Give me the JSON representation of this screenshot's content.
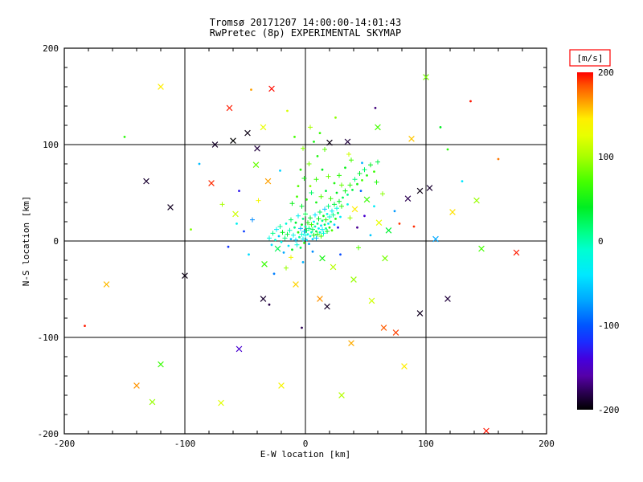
{
  "page": {
    "background": "#ffffff"
  },
  "chart_data": {
    "type": "scatter",
    "title": "Tromsø 20171207 14:00:00-14:01:43",
    "subtitle": "RwPretec (8p) EXPERIMENTAL SKYMAP",
    "xlabel": "E-W location [km]",
    "ylabel": "N-S location [km]",
    "xlim": [
      -200,
      200
    ],
    "ylim": [
      -200,
      200
    ],
    "xticks": [
      -200,
      -100,
      0,
      100,
      200
    ],
    "yticks": [
      -200,
      -100,
      0,
      100,
      200
    ],
    "grid_lines": [
      -100,
      0,
      100
    ],
    "grid_on": true,
    "axis_color": "#000000",
    "colorbar": {
      "label": "[m/s]",
      "min": -200,
      "max": 200,
      "ticks": [
        200,
        100,
        0,
        -100,
        -200
      ],
      "box_color": "#ff0000"
    },
    "colormap": [
      [
        -200,
        "#000000"
      ],
      [
        -180,
        "#2a0050"
      ],
      [
        -160,
        "#5500a8"
      ],
      [
        -140,
        "#4400dd"
      ],
      [
        -120,
        "#1b2bff"
      ],
      [
        -100,
        "#0055ff"
      ],
      [
        -70,
        "#00a8ff"
      ],
      [
        -40,
        "#00e8ff"
      ],
      [
        -10,
        "#00ffd0"
      ],
      [
        10,
        "#00ff88"
      ],
      [
        40,
        "#00ee22"
      ],
      [
        70,
        "#44ff00"
      ],
      [
        100,
        "#a8ff00"
      ],
      [
        125,
        "#e8ff00"
      ],
      [
        145,
        "#ffee00"
      ],
      [
        165,
        "#ffa000"
      ],
      [
        185,
        "#ff5000"
      ],
      [
        200,
        "#ff0000"
      ]
    ],
    "points_format": [
      "x_km",
      "y_km",
      "velocity_mps",
      "marker"
    ],
    "points": [
      [
        -30,
        3,
        -20,
        "+"
      ],
      [
        -28,
        -4,
        -45,
        "."
      ],
      [
        -27,
        8,
        10,
        "+"
      ],
      [
        -25,
        1,
        -10,
        "."
      ],
      [
        -24,
        12,
        -35,
        "+"
      ],
      [
        -23,
        -8,
        25,
        "x"
      ],
      [
        -22,
        5,
        -55,
        "."
      ],
      [
        -21,
        15,
        5,
        "+"
      ],
      [
        -20,
        -1,
        -25,
        "."
      ],
      [
        -19,
        9,
        40,
        "+"
      ],
      [
        -18,
        -12,
        -70,
        "."
      ],
      [
        -17,
        3,
        15,
        "+"
      ],
      [
        -16,
        18,
        -15,
        "."
      ],
      [
        -15,
        7,
        30,
        "+"
      ],
      [
        -14,
        -5,
        -40,
        "."
      ],
      [
        -13,
        11,
        0,
        "+"
      ],
      [
        -12,
        2,
        -60,
        "."
      ],
      [
        -12,
        22,
        20,
        "+"
      ],
      [
        -11,
        -9,
        45,
        "."
      ],
      [
        -10,
        6,
        -20,
        "+"
      ],
      [
        -9,
        14,
        10,
        "."
      ],
      [
        -8,
        1,
        -50,
        "+"
      ],
      [
        -8,
        19,
        35,
        "."
      ],
      [
        -7,
        -4,
        -15,
        "+"
      ],
      [
        -6,
        9,
        55,
        "."
      ],
      [
        -6,
        26,
        -30,
        "+"
      ],
      [
        -5,
        4,
        5,
        "."
      ],
      [
        -4,
        13,
        -65,
        "+"
      ],
      [
        -4,
        -7,
        25,
        "."
      ],
      [
        -3,
        7,
        -10,
        "+"
      ],
      [
        -3,
        17,
        40,
        "."
      ],
      [
        -2,
        2,
        -35,
        "+"
      ],
      [
        -2,
        23,
        15,
        "."
      ],
      [
        -1,
        10,
        -55,
        "+"
      ],
      [
        -1,
        -2,
        60,
        "."
      ],
      [
        0,
        6,
        -25,
        "+"
      ],
      [
        0,
        15,
        5,
        "."
      ],
      [
        0,
        28,
        30,
        "+"
      ],
      [
        1,
        1,
        -45,
        "."
      ],
      [
        1,
        11,
        20,
        "+"
      ],
      [
        2,
        7,
        -15,
        "."
      ],
      [
        2,
        19,
        50,
        "+"
      ],
      [
        3,
        -3,
        -70,
        "."
      ],
      [
        3,
        13,
        10,
        "+"
      ],
      [
        4,
        5,
        -30,
        "."
      ],
      [
        4,
        24,
        35,
        "+"
      ],
      [
        5,
        9,
        -5,
        "."
      ],
      [
        5,
        17,
        65,
        "+"
      ],
      [
        6,
        2,
        -50,
        "."
      ],
      [
        6,
        12,
        25,
        "+"
      ],
      [
        7,
        20,
        -20,
        "."
      ],
      [
        7,
        6,
        45,
        "+"
      ],
      [
        8,
        15,
        0,
        "."
      ],
      [
        8,
        27,
        -40,
        "+"
      ],
      [
        9,
        10,
        30,
        "."
      ],
      [
        9,
        3,
        -60,
        "+"
      ],
      [
        10,
        18,
        15,
        "."
      ],
      [
        10,
        7,
        55,
        "+"
      ],
      [
        11,
        13,
        -25,
        "."
      ],
      [
        11,
        23,
        40,
        "+"
      ],
      [
        12,
        9,
        -10,
        "."
      ],
      [
        12,
        30,
        20,
        "+"
      ],
      [
        13,
        16,
        -45,
        "."
      ],
      [
        13,
        5,
        70,
        "+"
      ],
      [
        14,
        21,
        10,
        "."
      ],
      [
        14,
        12,
        -30,
        "+"
      ],
      [
        15,
        26,
        45,
        "."
      ],
      [
        15,
        8,
        -15,
        "+"
      ],
      [
        16,
        17,
        25,
        "."
      ],
      [
        16,
        33,
        -55,
        "+"
      ],
      [
        17,
        13,
        5,
        "."
      ],
      [
        17,
        22,
        60,
        "+"
      ],
      [
        18,
        28,
        -20,
        "."
      ],
      [
        18,
        10,
        35,
        "+"
      ],
      [
        19,
        18,
        -40,
        "."
      ],
      [
        19,
        36,
        15,
        "+"
      ],
      [
        20,
        14,
        50,
        "."
      ],
      [
        20,
        25,
        -10,
        "+"
      ],
      [
        21,
        20,
        25,
        "."
      ],
      [
        22,
        31,
        -30,
        "+"
      ],
      [
        22,
        11,
        70,
        "."
      ],
      [
        23,
        27,
        10,
        "+"
      ],
      [
        24,
        17,
        -50,
        "."
      ],
      [
        24,
        38,
        30,
        "+"
      ],
      [
        25,
        23,
        55,
        "."
      ],
      [
        26,
        34,
        -15,
        "+"
      ],
      [
        27,
        29,
        20,
        "."
      ],
      [
        28,
        41,
        40,
        "+"
      ],
      [
        29,
        25,
        -35,
        "."
      ],
      [
        30,
        36,
        60,
        "+"
      ],
      [
        31,
        45,
        25,
        "."
      ],
      [
        33,
        52,
        45,
        "+"
      ],
      [
        35,
        48,
        10,
        "."
      ],
      [
        37,
        58,
        60,
        "+"
      ],
      [
        39,
        53,
        30,
        "."
      ],
      [
        41,
        64,
        15,
        "+"
      ],
      [
        43,
        59,
        50,
        "."
      ],
      [
        45,
        70,
        35,
        "+"
      ],
      [
        47,
        63,
        70,
        "."
      ],
      [
        49,
        74,
        20,
        "+"
      ],
      [
        51,
        68,
        55,
        "."
      ],
      [
        54,
        79,
        40,
        "+"
      ],
      [
        57,
        72,
        65,
        "."
      ],
      [
        60,
        82,
        30,
        "+"
      ],
      [
        35,
        38,
        -20,
        "."
      ],
      [
        30,
        58,
        80,
        "+"
      ],
      [
        26,
        50,
        40,
        "."
      ],
      [
        21,
        44,
        65,
        "+"
      ],
      [
        17,
        52,
        30,
        "."
      ],
      [
        13,
        46,
        75,
        "+"
      ],
      [
        9,
        40,
        50,
        "."
      ],
      [
        5,
        50,
        20,
        "+"
      ],
      [
        1,
        43,
        60,
        "."
      ],
      [
        -3,
        36,
        35,
        "+"
      ],
      [
        -7,
        46,
        70,
        "."
      ],
      [
        -11,
        39,
        45,
        "+"
      ],
      [
        24,
        60,
        55,
        "."
      ],
      [
        19,
        67,
        80,
        "+"
      ],
      [
        14,
        74,
        40,
        "."
      ],
      [
        9,
        64,
        65,
        "+"
      ],
      [
        4,
        57,
        90,
        "."
      ],
      [
        -1,
        65,
        50,
        "+"
      ],
      [
        -6,
        57,
        75,
        "."
      ],
      [
        28,
        68,
        60,
        "+"
      ],
      [
        33,
        76,
        45,
        "."
      ],
      [
        38,
        84,
        70,
        "+"
      ],
      [
        10,
        88,
        55,
        "."
      ],
      [
        3,
        80,
        85,
        "+"
      ],
      [
        -4,
        74,
        60,
        "."
      ],
      [
        16,
        95,
        75,
        "+"
      ],
      [
        7,
        103,
        50,
        "."
      ],
      [
        -2,
        96,
        90,
        "+"
      ],
      [
        12,
        112,
        65,
        "."
      ],
      [
        4,
        118,
        100,
        "+"
      ],
      [
        -9,
        108,
        70,
        "."
      ],
      [
        -44,
        22,
        -80,
        "+"
      ],
      [
        -51,
        10,
        -110,
        "."
      ],
      [
        -58,
        28,
        115,
        "x"
      ],
      [
        -47,
        -14,
        -45,
        "."
      ],
      [
        -39,
        42,
        135,
        "+"
      ],
      [
        -55,
        52,
        -130,
        "."
      ],
      [
        -34,
        -24,
        65,
        "x"
      ],
      [
        -26,
        -34,
        -85,
        "."
      ],
      [
        -16,
        -28,
        95,
        "+"
      ],
      [
        -2,
        -22,
        -65,
        "."
      ],
      [
        14,
        -18,
        50,
        "x"
      ],
      [
        29,
        -14,
        -105,
        "."
      ],
      [
        44,
        -7,
        75,
        "+"
      ],
      [
        54,
        6,
        -55,
        "."
      ],
      [
        61,
        19,
        125,
        "x"
      ],
      [
        57,
        36,
        -35,
        "."
      ],
      [
        64,
        49,
        90,
        "+"
      ],
      [
        49,
        26,
        -145,
        "."
      ],
      [
        69,
        11,
        35,
        "x"
      ],
      [
        74,
        31,
        -75,
        "."
      ],
      [
        -69,
        38,
        100,
        "+"
      ],
      [
        -64,
        -6,
        -115,
        "."
      ],
      [
        41,
        33,
        145,
        "x"
      ],
      [
        46,
        52,
        -95,
        "."
      ],
      [
        59,
        61,
        55,
        "+"
      ],
      [
        -31,
        62,
        165,
        "x"
      ],
      [
        -21,
        73,
        -50,
        "."
      ],
      [
        36,
        90,
        115,
        "+"
      ],
      [
        47,
        81,
        -65,
        "."
      ],
      [
        -41,
        79,
        80,
        "x"
      ],
      [
        27,
        14,
        -135,
        "."
      ],
      [
        37,
        24,
        95,
        "+"
      ],
      [
        43,
        14,
        -165,
        "."
      ],
      [
        51,
        43,
        65,
        "x"
      ],
      [
        -12,
        -17,
        135,
        "+"
      ],
      [
        6,
        -11,
        -80,
        "."
      ],
      [
        23,
        -27,
        105,
        "x"
      ],
      [
        -57,
        18,
        -30,
        "."
      ],
      [
        66,
        -18,
        85,
        "x"
      ],
      [
        78,
        18,
        190,
        "."
      ],
      [
        -120,
        160,
        145,
        "x"
      ],
      [
        -63,
        138,
        195,
        "x"
      ],
      [
        -45,
        157,
        165,
        "."
      ],
      [
        -28,
        158,
        198,
        "x"
      ],
      [
        -35,
        118,
        125,
        "x"
      ],
      [
        -48,
        112,
        -195,
        "x"
      ],
      [
        -60,
        104,
        -200,
        "x"
      ],
      [
        -75,
        100,
        -190,
        "x"
      ],
      [
        -40,
        96,
        -185,
        "x"
      ],
      [
        20,
        102,
        -195,
        "x"
      ],
      [
        35,
        103,
        -185,
        "x"
      ],
      [
        60,
        118,
        70,
        "x"
      ],
      [
        100,
        170,
        85,
        "x"
      ],
      [
        137,
        145,
        196,
        "."
      ],
      [
        88,
        106,
        155,
        "x"
      ],
      [
        118,
        95,
        60,
        "."
      ],
      [
        95,
        52,
        -195,
        "x"
      ],
      [
        103,
        55,
        -188,
        "x"
      ],
      [
        85,
        44,
        -180,
        "x"
      ],
      [
        122,
        30,
        148,
        "x"
      ],
      [
        175,
        -12,
        195,
        "x"
      ],
      [
        146,
        -8,
        70,
        "x"
      ],
      [
        108,
        2,
        -70,
        "x"
      ],
      [
        90,
        15,
        192,
        "."
      ],
      [
        130,
        62,
        -40,
        "."
      ],
      [
        150,
        -197,
        196,
        "x"
      ],
      [
        75,
        -95,
        188,
        "x"
      ],
      [
        65,
        -90,
        182,
        "x"
      ],
      [
        95,
        -75,
        -192,
        "x"
      ],
      [
        55,
        -62,
        115,
        "x"
      ],
      [
        40,
        -40,
        95,
        "x"
      ],
      [
        -165,
        -45,
        158,
        "x"
      ],
      [
        -140,
        -150,
        168,
        "x"
      ],
      [
        -127,
        -167,
        95,
        "x"
      ],
      [
        -120,
        -128,
        65,
        "x"
      ],
      [
        -183,
        -88,
        195,
        "."
      ],
      [
        -100,
        -36,
        -195,
        "x"
      ],
      [
        -35,
        -60,
        -188,
        "x"
      ],
      [
        -30,
        -66,
        -182,
        "."
      ],
      [
        -20,
        -150,
        138,
        "x"
      ],
      [
        -55,
        -112,
        -145,
        "x"
      ],
      [
        -8,
        -45,
        152,
        "x"
      ],
      [
        12,
        -60,
        168,
        "x"
      ],
      [
        18,
        -68,
        -190,
        "x"
      ],
      [
        -3,
        -90,
        -180,
        "."
      ],
      [
        38,
        -106,
        162,
        "x"
      ],
      [
        -112,
        35,
        -192,
        "x"
      ],
      [
        -78,
        60,
        192,
        "x"
      ],
      [
        -95,
        12,
        88,
        "."
      ],
      [
        58,
        138,
        -170,
        "."
      ],
      [
        -15,
        135,
        118,
        "."
      ],
      [
        25,
        128,
        92,
        "."
      ],
      [
        -88,
        80,
        -60,
        "."
      ],
      [
        112,
        118,
        40,
        "."
      ],
      [
        160,
        85,
        175,
        "."
      ],
      [
        -150,
        108,
        60,
        "."
      ],
      [
        82,
        -130,
        145,
        "x"
      ],
      [
        -70,
        -168,
        122,
        "x"
      ],
      [
        30,
        -160,
        105,
        "x"
      ],
      [
        118,
        -60,
        -185,
        "x"
      ],
      [
        142,
        42,
        95,
        "x"
      ],
      [
        -132,
        62,
        -188,
        "x"
      ]
    ]
  }
}
